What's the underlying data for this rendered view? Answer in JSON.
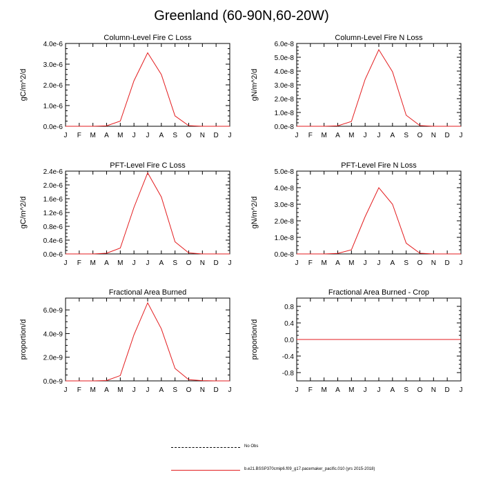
{
  "title": "Greenland (60-90N,60-20W)",
  "legend": {
    "no_obs": "No Obs",
    "model": "b.e21.BSSP370cmip6.f09_g17.pacemaker_pacific.010 (yrs 2015-2018)"
  },
  "colors": {
    "model": "#e31a1c",
    "axis": "#000000",
    "obs": "#000000"
  },
  "months": [
    "J",
    "F",
    "M",
    "A",
    "M",
    "J",
    "J",
    "A",
    "S",
    "O",
    "N",
    "D",
    "J"
  ],
  "chart_data": [
    {
      "type": "line",
      "title": "Column-Level Fire C Loss",
      "ylabel": "gC/m^2/d",
      "ylim": [
        0,
        4e-06
      ],
      "yticks": [
        0,
        1e-06,
        2e-06,
        3e-06,
        4e-06
      ],
      "yticklabels": [
        "0.0e-6",
        "1.0e-6",
        "2.0e-6",
        "3.0e-6",
        "4.0e-6"
      ],
      "series": [
        {
          "name": "model",
          "values": [
            0,
            0,
            0,
            2e-08,
            2.5e-07,
            2.2e-06,
            3.55e-06,
            2.5e-06,
            5e-07,
            3e-08,
            0,
            0,
            0
          ]
        }
      ]
    },
    {
      "type": "line",
      "title": "Column-Level Fire N Loss",
      "ylabel": "gN/m^2/d",
      "ylim": [
        0,
        6e-08
      ],
      "yticks": [
        0,
        1e-08,
        2e-08,
        3e-08,
        4e-08,
        5e-08,
        6e-08
      ],
      "yticklabels": [
        "0.0e-8",
        "1.0e-8",
        "2.0e-8",
        "3.0e-8",
        "4.0e-8",
        "5.0e-8",
        "6.0e-8"
      ],
      "series": [
        {
          "name": "model",
          "values": [
            0,
            0,
            0,
            3e-10,
            3.5e-09,
            3.4e-08,
            5.55e-08,
            3.95e-08,
            8e-09,
            5e-10,
            0,
            0,
            0
          ]
        }
      ]
    },
    {
      "type": "line",
      "title": "PFT-Level Fire C Loss",
      "ylabel": "gC/m^2/d",
      "ylim": [
        0,
        2.4e-06
      ],
      "yticks": [
        0,
        4e-07,
        8e-07,
        1.2e-06,
        1.6e-06,
        2e-06,
        2.4e-06
      ],
      "yticklabels": [
        "0.0e-6",
        "0.4e-6",
        "0.8e-6",
        "1.2e-6",
        "1.6e-6",
        "2.0e-6",
        "2.4e-6"
      ],
      "series": [
        {
          "name": "model",
          "values": [
            0,
            0,
            0,
            2e-08,
            1.7e-07,
            1.35e-06,
            2.35e-06,
            1.65e-06,
            3.5e-07,
            3e-08,
            0,
            0,
            0
          ]
        }
      ]
    },
    {
      "type": "line",
      "title": "PFT-Level Fire N Loss",
      "ylabel": "gN/m^2/d",
      "ylim": [
        0,
        5e-08
      ],
      "yticks": [
        0,
        1e-08,
        2e-08,
        3e-08,
        4e-08,
        5e-08
      ],
      "yticklabels": [
        "0.0e-8",
        "1.0e-8",
        "2.0e-8",
        "3.0e-8",
        "4.0e-8",
        "5.0e-8"
      ],
      "series": [
        {
          "name": "model",
          "values": [
            0,
            0,
            0,
            3e-10,
            2.5e-09,
            2.25e-08,
            4e-08,
            3e-08,
            6.5e-09,
            4e-10,
            0,
            0,
            0
          ]
        }
      ]
    },
    {
      "type": "line",
      "title": "Fractional Area Burned",
      "ylabel": "proportion/d",
      "ylim": [
        0,
        7e-09
      ],
      "yticks": [
        0,
        2e-09,
        4e-09,
        6e-09
      ],
      "yticklabels": [
        "0.0e-9",
        "2.0e-9",
        "4.0e-9",
        "6.0e-9"
      ],
      "series": [
        {
          "name": "model",
          "values": [
            0,
            0,
            0,
            3e-11,
            4.5e-10,
            3.9e-09,
            6.6e-09,
            4.4e-09,
            1.05e-09,
            1e-10,
            2e-11,
            0,
            0
          ]
        }
      ]
    },
    {
      "type": "line",
      "title": "Fractional Area Burned - Crop",
      "ylabel": "proportion/d",
      "ylim": [
        -1.0,
        1.0
      ],
      "yticks": [
        -0.8,
        -0.4,
        0,
        0.4,
        0.8
      ],
      "yticklabels": [
        "-0.8",
        "-0.4",
        "0.0",
        "0.4",
        "0.8"
      ],
      "series": [
        {
          "name": "model",
          "values": [
            0,
            0,
            0,
            0,
            0,
            0,
            0,
            0,
            0,
            0,
            0,
            0,
            0
          ]
        }
      ]
    }
  ]
}
